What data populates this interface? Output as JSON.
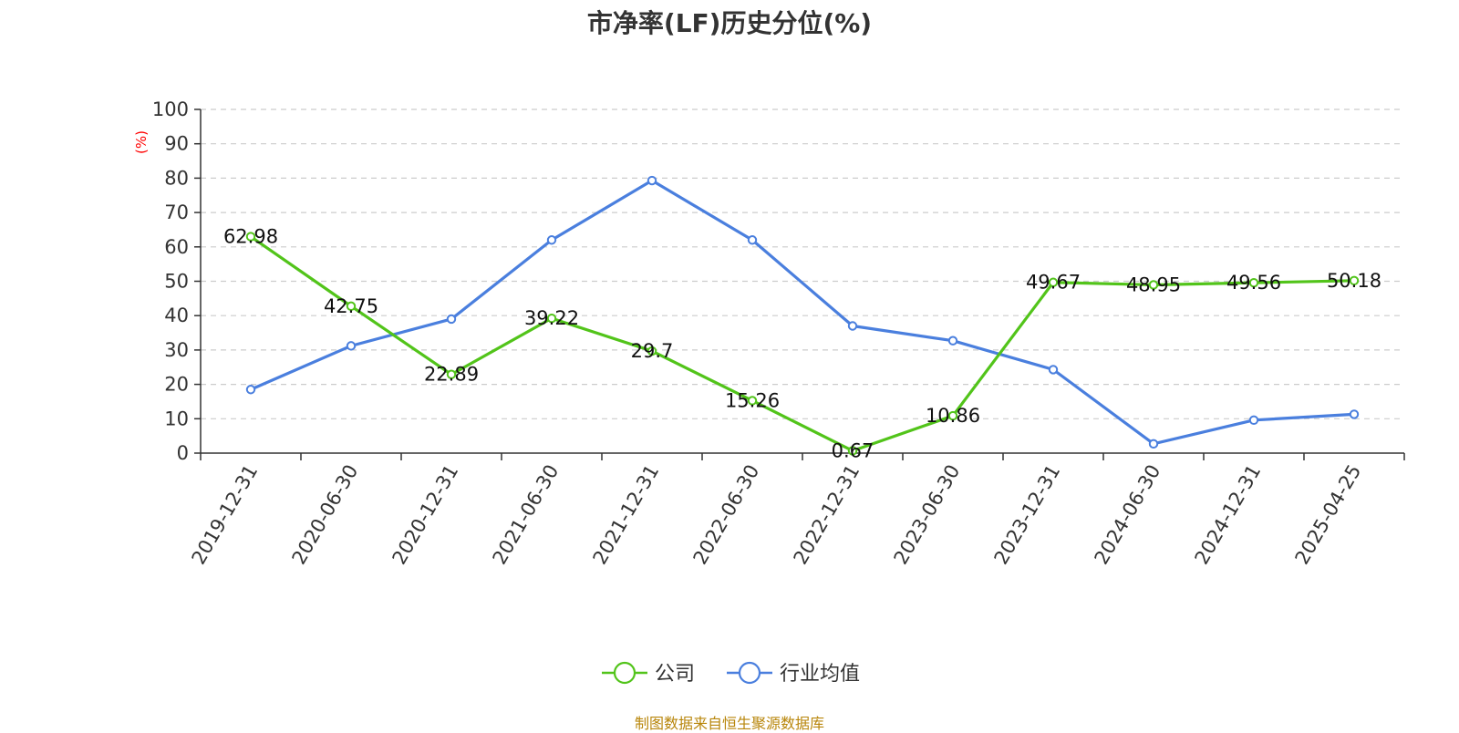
{
  "title": "市净率(LF)历史分位(%)",
  "source": "制图数据来自恒生聚源数据库",
  "colors": {
    "company": "#52c41a",
    "industry": "#4a7fde",
    "yunit": "#ff0000",
    "source": "#b8860b"
  },
  "chart_data": {
    "type": "line",
    "title": "市净率(LF)历史分位(%)",
    "ylabel": "(%)",
    "ylim": [
      0,
      100
    ],
    "yticks": [
      0,
      10,
      20,
      30,
      40,
      50,
      60,
      70,
      80,
      90,
      100
    ],
    "grid": true,
    "legend": "bottom-center",
    "categories": [
      "2019-12-31",
      "2020-06-30",
      "2020-12-31",
      "2021-06-30",
      "2021-12-31",
      "2022-06-30",
      "2022-12-31",
      "2023-06-30",
      "2023-12-31",
      "2024-06-30",
      "2024-12-31",
      "2025-04-25"
    ],
    "series": [
      {
        "name": "公司",
        "color": "#52c41a",
        "show_labels": true,
        "values": [
          62.98,
          42.75,
          22.89,
          39.22,
          29.7,
          15.26,
          0.67,
          10.86,
          49.67,
          48.95,
          49.56,
          50.18
        ],
        "labels": [
          "62.98",
          "42.75",
          "22.89",
          "39.22",
          "29.7",
          "15.26",
          "0.67",
          "10.86",
          "49.67",
          "48.95",
          "49.56",
          "50.18"
        ]
      },
      {
        "name": "行业均值",
        "color": "#4a7fde",
        "show_labels": false,
        "values": [
          18.5,
          31.2,
          39.0,
          62.0,
          79.3,
          62.0,
          37.0,
          32.7,
          24.3,
          2.7,
          9.6,
          11.3
        ]
      }
    ]
  }
}
